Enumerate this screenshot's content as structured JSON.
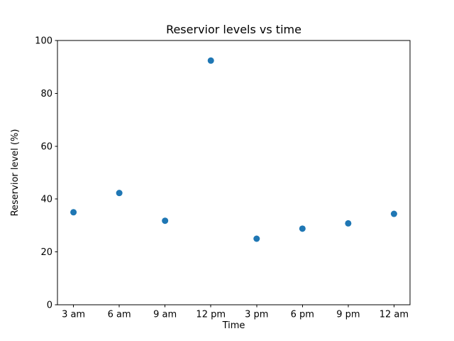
{
  "chart_data": {
    "type": "scatter",
    "title": "Reservior levels vs time",
    "xlabel": "Time",
    "ylabel": "Reservior level (%)",
    "categories": [
      "3 am",
      "6 am",
      "9 am",
      "12 pm",
      "3 pm",
      "6 pm",
      "9 pm",
      "12 am"
    ],
    "values": [
      35,
      42.3,
      31.8,
      92.4,
      25,
      28.8,
      30.8,
      34.4
    ],
    "ylim": [
      0,
      100
    ],
    "yticks": [
      0,
      20,
      40,
      60,
      80,
      100
    ],
    "marker_color": "#1f77b4",
    "axis_color": "#000000",
    "grid": "off",
    "legend": "none"
  }
}
